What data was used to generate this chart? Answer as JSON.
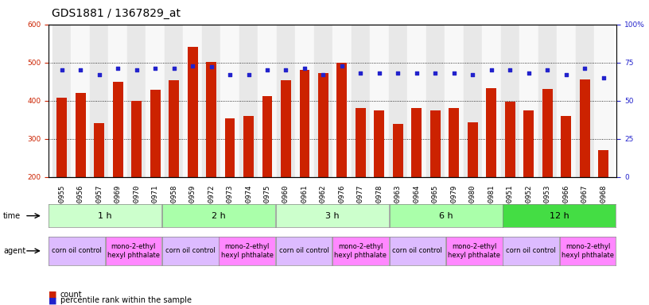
{
  "title": "GDS1881 / 1367829_at",
  "samples": [
    "GSM100955",
    "GSM100956",
    "GSM100957",
    "GSM100969",
    "GSM100970",
    "GSM100971",
    "GSM100958",
    "GSM100959",
    "GSM100972",
    "GSM100973",
    "GSM100974",
    "GSM100975",
    "GSM100960",
    "GSM100961",
    "GSM100962",
    "GSM100976",
    "GSM100977",
    "GSM100978",
    "GSM100963",
    "GSM100964",
    "GSM100965",
    "GSM100979",
    "GSM100980",
    "GSM100981",
    "GSM100951",
    "GSM100952",
    "GSM100953",
    "GSM100966",
    "GSM100967",
    "GSM100968"
  ],
  "counts": [
    407,
    420,
    342,
    449,
    399,
    428,
    453,
    541,
    501,
    354,
    360,
    412,
    453,
    480,
    473,
    500,
    380,
    375,
    340,
    380,
    375,
    380,
    343,
    432,
    398,
    375,
    430,
    360,
    455,
    270
  ],
  "percentiles": [
    70,
    70,
    67,
    71,
    70,
    71,
    71,
    73,
    72,
    67,
    67,
    70,
    70,
    71,
    67,
    73,
    68,
    68,
    68,
    68,
    68,
    68,
    67,
    70,
    70,
    68,
    70,
    67,
    71,
    65
  ],
  "time_groups": [
    {
      "label": "1 h",
      "start": 0,
      "end": 6,
      "color": "#ccffcc"
    },
    {
      "label": "2 h",
      "start": 6,
      "end": 12,
      "color": "#aaffaa"
    },
    {
      "label": "3 h",
      "start": 12,
      "end": 18,
      "color": "#ccffcc"
    },
    {
      "label": "6 h",
      "start": 18,
      "end": 24,
      "color": "#aaffaa"
    },
    {
      "label": "12 h",
      "start": 24,
      "end": 30,
      "color": "#44dd44"
    }
  ],
  "agent_groups": [
    {
      "label": "corn oil control",
      "start": 0,
      "end": 3,
      "color": "#ddbbff"
    },
    {
      "label": "mono-2-ethyl\nhexyl phthalate",
      "start": 3,
      "end": 6,
      "color": "#ff88ff"
    },
    {
      "label": "corn oil control",
      "start": 6,
      "end": 9,
      "color": "#ddbbff"
    },
    {
      "label": "mono-2-ethyl\nhexyl phthalate",
      "start": 9,
      "end": 12,
      "color": "#ff88ff"
    },
    {
      "label": "corn oil control",
      "start": 12,
      "end": 15,
      "color": "#ddbbff"
    },
    {
      "label": "mono-2-ethyl\nhexyl phthalate",
      "start": 15,
      "end": 18,
      "color": "#ff88ff"
    },
    {
      "label": "corn oil control",
      "start": 18,
      "end": 21,
      "color": "#ddbbff"
    },
    {
      "label": "mono-2-ethyl\nhexyl phthalate",
      "start": 21,
      "end": 24,
      "color": "#ff88ff"
    },
    {
      "label": "corn oil control",
      "start": 24,
      "end": 27,
      "color": "#ddbbff"
    },
    {
      "label": "mono-2-ethyl\nhexyl phthalate",
      "start": 27,
      "end": 30,
      "color": "#ff88ff"
    }
  ],
  "ylim_left": [
    200,
    600
  ],
  "ylim_right": [
    0,
    100
  ],
  "yticks_left": [
    200,
    300,
    400,
    500,
    600
  ],
  "yticks_right": [
    0,
    25,
    50,
    75,
    100
  ],
  "bar_color": "#cc2200",
  "dot_color": "#2222cc",
  "bar_width": 0.55,
  "title_fontsize": 10,
  "tick_fontsize": 6.5,
  "label_fontsize": 7.5
}
